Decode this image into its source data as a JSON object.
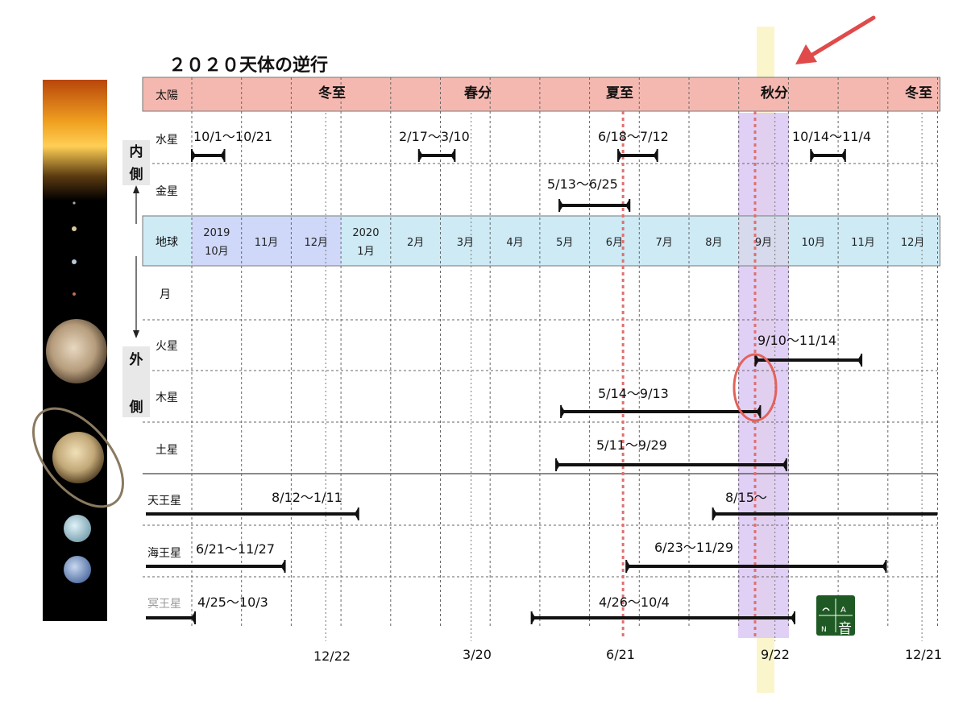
{
  "title": "２０２０天体の逆行",
  "sun_row": {
    "label": "太陽",
    "markers": [
      "冬至",
      "春分",
      "夏至",
      "秋分",
      "冬至"
    ]
  },
  "side_labels": {
    "inner": [
      "内",
      "側"
    ],
    "outer": [
      "外",
      "側"
    ]
  },
  "bodies": {
    "mercury": "水星",
    "venus": "金星",
    "earth": "地球",
    "moon": "月",
    "mars": "火星",
    "jupiter": "木星",
    "saturn": "土星",
    "uranus": "天王星",
    "neptune": "海王星",
    "pluto": "冥王星"
  },
  "earth_months": [
    [
      "2019",
      "10月"
    ],
    [
      "11月"
    ],
    [
      "12月"
    ],
    [
      "2020",
      "1月"
    ],
    [
      "2月"
    ],
    [
      "3月"
    ],
    [
      "4月"
    ],
    [
      "5月"
    ],
    [
      "6月"
    ],
    [
      "7月"
    ],
    [
      "8月"
    ],
    [
      "9月"
    ],
    [
      "10月"
    ],
    [
      "11月"
    ],
    [
      "12月"
    ]
  ],
  "retrograde_labels": {
    "mercury": [
      "10/1〜10/21",
      "2/17〜3/10",
      "6/18〜7/12",
      "10/14〜11/4"
    ],
    "venus": [
      "5/13〜6/25"
    ],
    "mars": [
      "9/10〜11/14"
    ],
    "jupiter": [
      "5/14〜9/13"
    ],
    "saturn": [
      "5/11〜9/29"
    ],
    "uranus": [
      "8/12〜1/11",
      "8/15〜"
    ],
    "neptune": [
      "6/21〜11/27",
      "6/23〜11/29"
    ],
    "pluto": [
      "4/25〜10/3",
      "4/26〜10/4"
    ]
  },
  "retrograde_periods": {
    "mercury": [
      [
        "2019-10-01",
        "2019-10-21"
      ],
      [
        "2020-02-17",
        "2020-03-10"
      ],
      [
        "2020-06-18",
        "2020-07-12"
      ],
      [
        "2020-10-14",
        "2020-11-04"
      ]
    ],
    "venus": [
      [
        "2020-05-13",
        "2020-06-25"
      ]
    ],
    "mars": [
      [
        "2020-09-10",
        "2020-11-14"
      ]
    ],
    "jupiter": [
      [
        "2020-05-14",
        "2020-09-13"
      ]
    ],
    "saturn": [
      [
        "2020-05-11",
        "2020-09-29"
      ]
    ],
    "uranus": [
      [
        null,
        "2020-01-11"
      ],
      [
        "2020-08-15",
        null
      ]
    ],
    "neptune": [
      [
        null,
        "2019-11-27"
      ],
      [
        "2020-06-23",
        "2020-11-29"
      ]
    ],
    "pluto": [
      [
        null,
        "2019-10-03"
      ],
      [
        "2020-04-26",
        "2020-10-04"
      ]
    ]
  },
  "bottom_dates": [
    "12/22",
    "3/20",
    "6/21",
    "9/22",
    "12/21"
  ],
  "logo_text": [
    "A",
    "N",
    "音"
  ],
  "colors": {
    "sun_row": "#f4b8b0",
    "earth_row": "#cdeaf5",
    "earth_highlight": "#cfd8f8",
    "equinox_band": "#fbf5cc",
    "mars_band": "#dcc8f5",
    "arrow": "#e04a4a",
    "logo": "#1f5a24"
  }
}
